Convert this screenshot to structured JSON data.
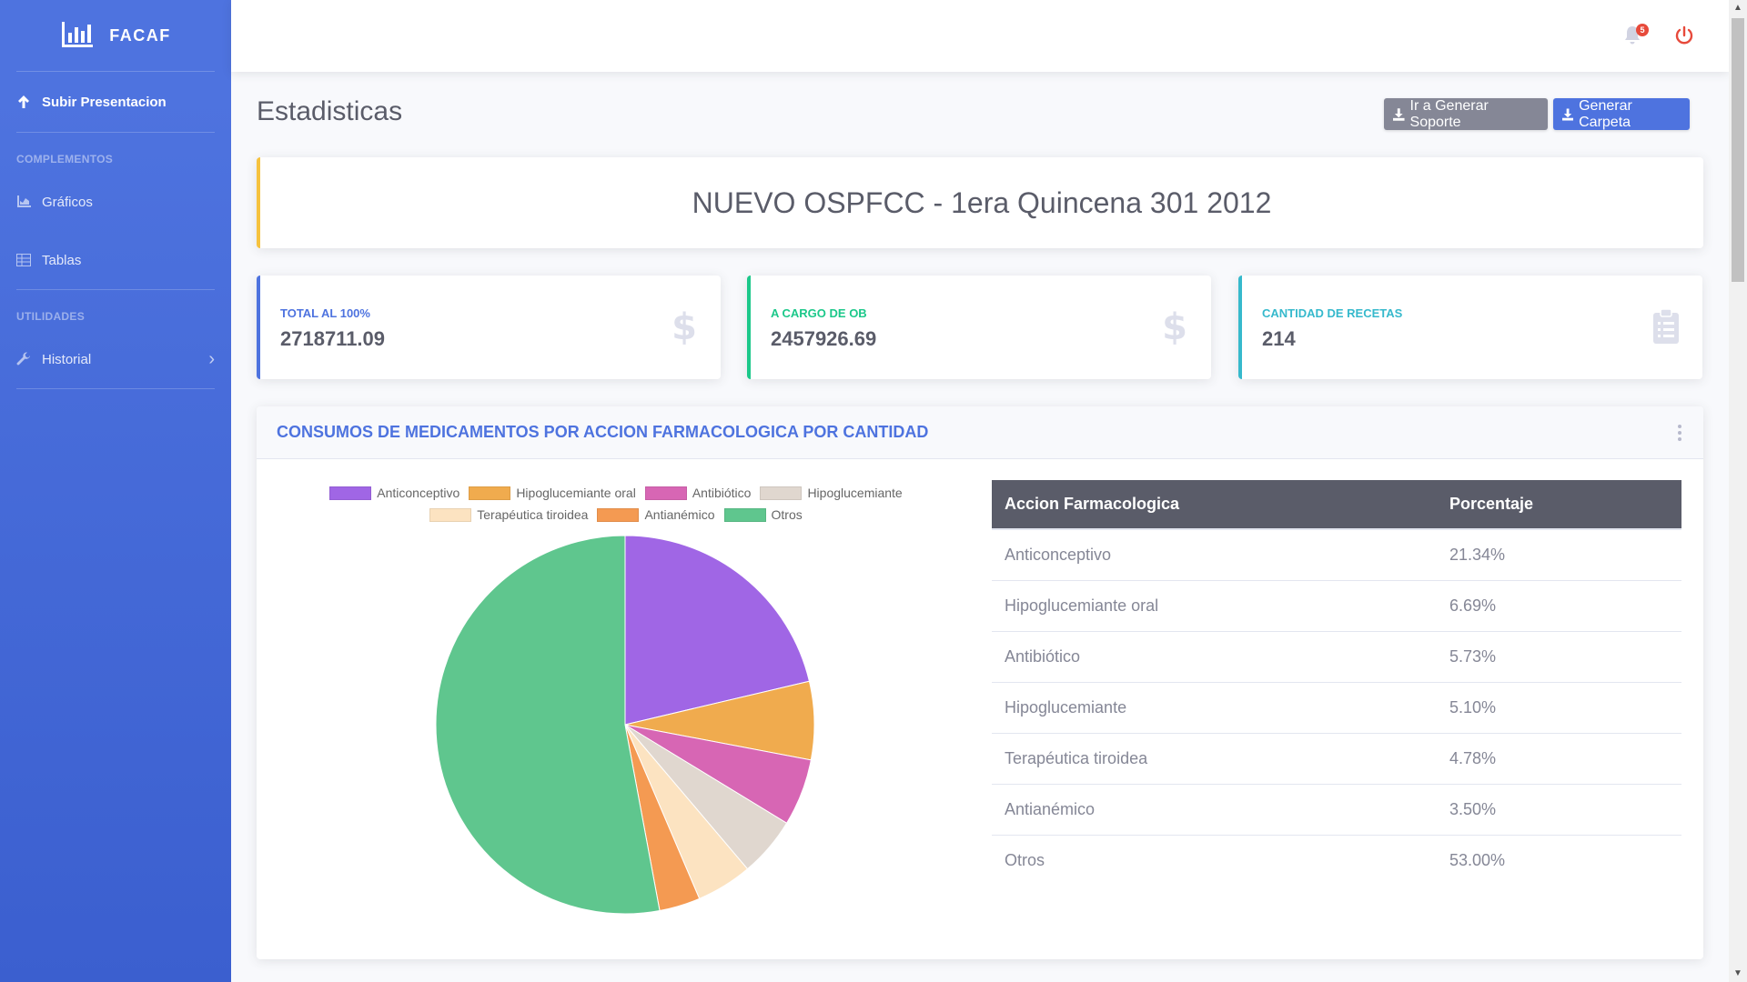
{
  "brand": {
    "name": "FACAF",
    "icon": "chart-bar-icon"
  },
  "sidebar": {
    "upload": {
      "label": "Subir Presentacion",
      "icon": "arrow-up-icon"
    },
    "section1": "COMPLEMENTOS",
    "graficos": {
      "label": "Gráficos",
      "icon": "area-chart-icon"
    },
    "tablas": {
      "label": "Tablas",
      "icon": "table-icon"
    },
    "section2": "UTILIDADES",
    "historial": {
      "label": "Historial",
      "icon": "wrench-icon"
    }
  },
  "topbar": {
    "notification_count": "5",
    "notification_icon": "bell-icon",
    "logout_icon": "power-icon"
  },
  "page": {
    "title": "Estadisticas",
    "btn_soporte": "Ir a Generar Soporte",
    "btn_carpeta": "Generar Carpeta"
  },
  "presentation_title": "NUEVO OSPFCC - 1era Quincena 301 2012",
  "stats": [
    {
      "label": "TOTAL AL 100%",
      "value": "2718711.09",
      "icon": "dollar-icon",
      "color": "#4e73df"
    },
    {
      "label": "A CARGO DE OB",
      "value": "2457926.69",
      "icon": "dollar-icon",
      "color": "#1cc88a"
    },
    {
      "label": "CANTIDAD DE RECETAS",
      "value": "214",
      "icon": "clipboard-list-icon",
      "color": "#36b9cc"
    }
  ],
  "chart_card": {
    "title": "CONSUMOS DE MEDICAMENTOS POR ACCION FARMACOLOGICA POR CANTIDAD"
  },
  "chart_data": {
    "type": "pie",
    "categories": [
      "Anticonceptivo",
      "Hipoglucemiante oral",
      "Antibiótico",
      "Hipoglucemiante",
      "Terapéutica tiroidea",
      "Antianémico",
      "Otros"
    ],
    "values": [
      21.34,
      6.69,
      5.73,
      5.1,
      4.78,
      3.5,
      53.0
    ],
    "colors": [
      "#a066e5",
      "#f0ab4e",
      "#d766b4",
      "#e0d7cf",
      "#fce3c1",
      "#f49a52",
      "#5fc68e"
    ],
    "legend_position": "top"
  },
  "table": {
    "headers": [
      "Accion Farmacologica",
      "Porcentaje"
    ],
    "rows": [
      [
        "Anticonceptivo",
        "21.34%"
      ],
      [
        "Hipoglucemiante oral",
        "6.69%"
      ],
      [
        "Antibiótico",
        "5.73%"
      ],
      [
        "Hipoglucemiante",
        "5.10%"
      ],
      [
        "Terapéutica tiroidea",
        "4.78%"
      ],
      [
        "Antianémico",
        "3.50%"
      ],
      [
        "Otros",
        "53.00%"
      ]
    ]
  }
}
